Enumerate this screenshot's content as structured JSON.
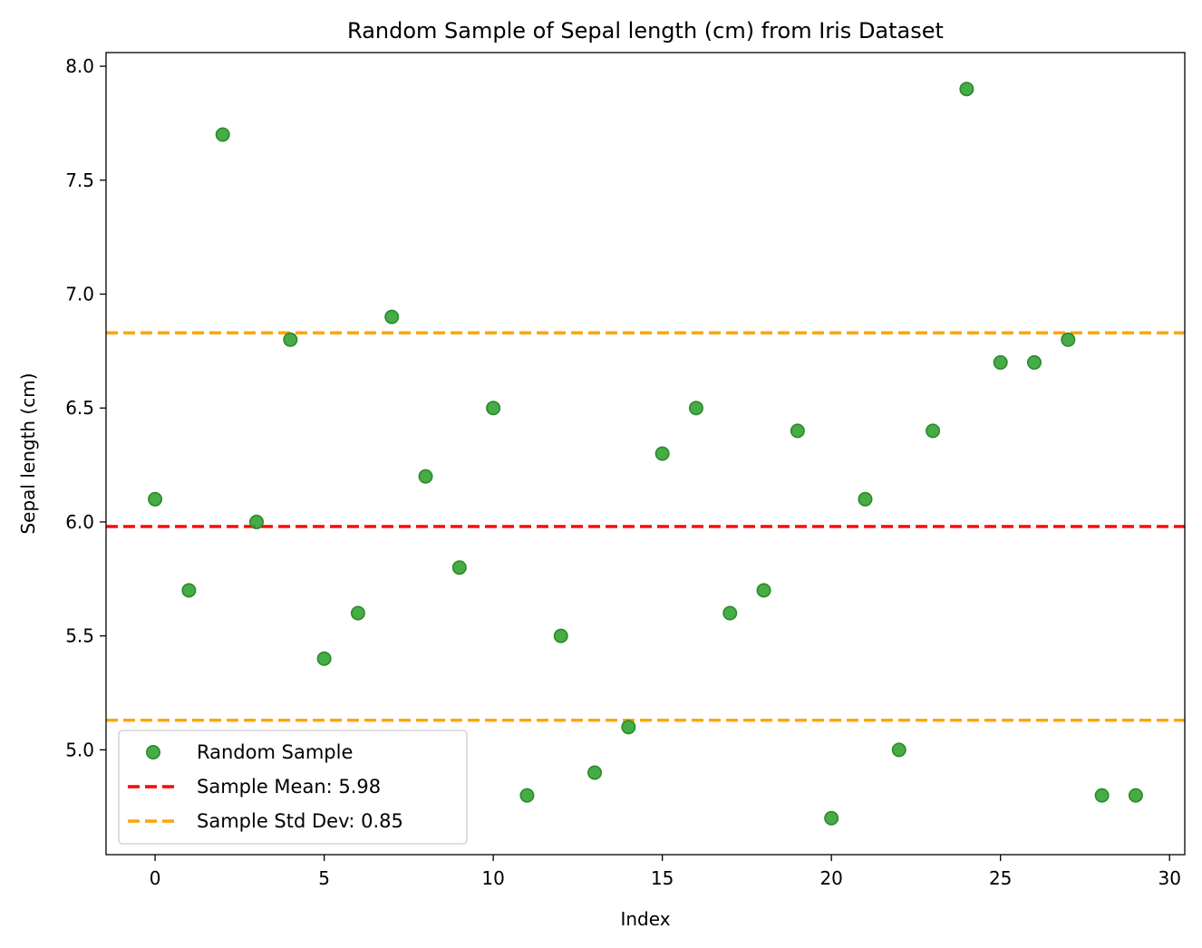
{
  "chart_data": {
    "type": "scatter",
    "title": "Random Sample of Sepal length (cm) from Iris Dataset",
    "xlabel": "Index",
    "ylabel": "Sepal length (cm)",
    "xlim": [
      -1.45,
      30.45
    ],
    "ylim": [
      4.54,
      8.06
    ],
    "xticks": [
      0,
      5,
      10,
      15,
      20,
      25,
      30
    ],
    "yticks": [
      5.0,
      5.5,
      6.0,
      6.5,
      7.0,
      7.5,
      8.0
    ],
    "ytick_labels": [
      "5.0",
      "5.5",
      "6.0",
      "6.5",
      "7.0",
      "7.5",
      "8.0"
    ],
    "grid": false,
    "legend_position": "lower-left",
    "series": [
      {
        "name": "Random Sample",
        "color": "#2ca02c",
        "x": [
          0,
          1,
          2,
          3,
          4,
          5,
          6,
          7,
          8,
          9,
          10,
          11,
          12,
          13,
          14,
          15,
          16,
          17,
          18,
          19,
          20,
          21,
          22,
          23,
          24,
          25,
          26,
          27,
          28,
          29
        ],
        "y": [
          6.1,
          5.7,
          7.7,
          6.0,
          6.8,
          5.4,
          5.6,
          6.9,
          6.2,
          5.8,
          6.5,
          4.8,
          5.5,
          4.9,
          5.1,
          6.3,
          6.5,
          5.6,
          5.7,
          6.4,
          4.7,
          6.1,
          5.0,
          6.4,
          7.9,
          6.7,
          6.7,
          6.8,
          4.8,
          4.8
        ]
      }
    ],
    "lines": [
      {
        "name": "Sample Mean: 5.98",
        "y": 5.98,
        "color": "#ff0000",
        "style": "dashed"
      },
      {
        "name": "Sample Std Dev: 0.85",
        "y": 6.83,
        "color": "#ffa500",
        "style": "dashed"
      },
      {
        "y": 5.13,
        "color": "#ffa500",
        "style": "dashed"
      }
    ]
  }
}
